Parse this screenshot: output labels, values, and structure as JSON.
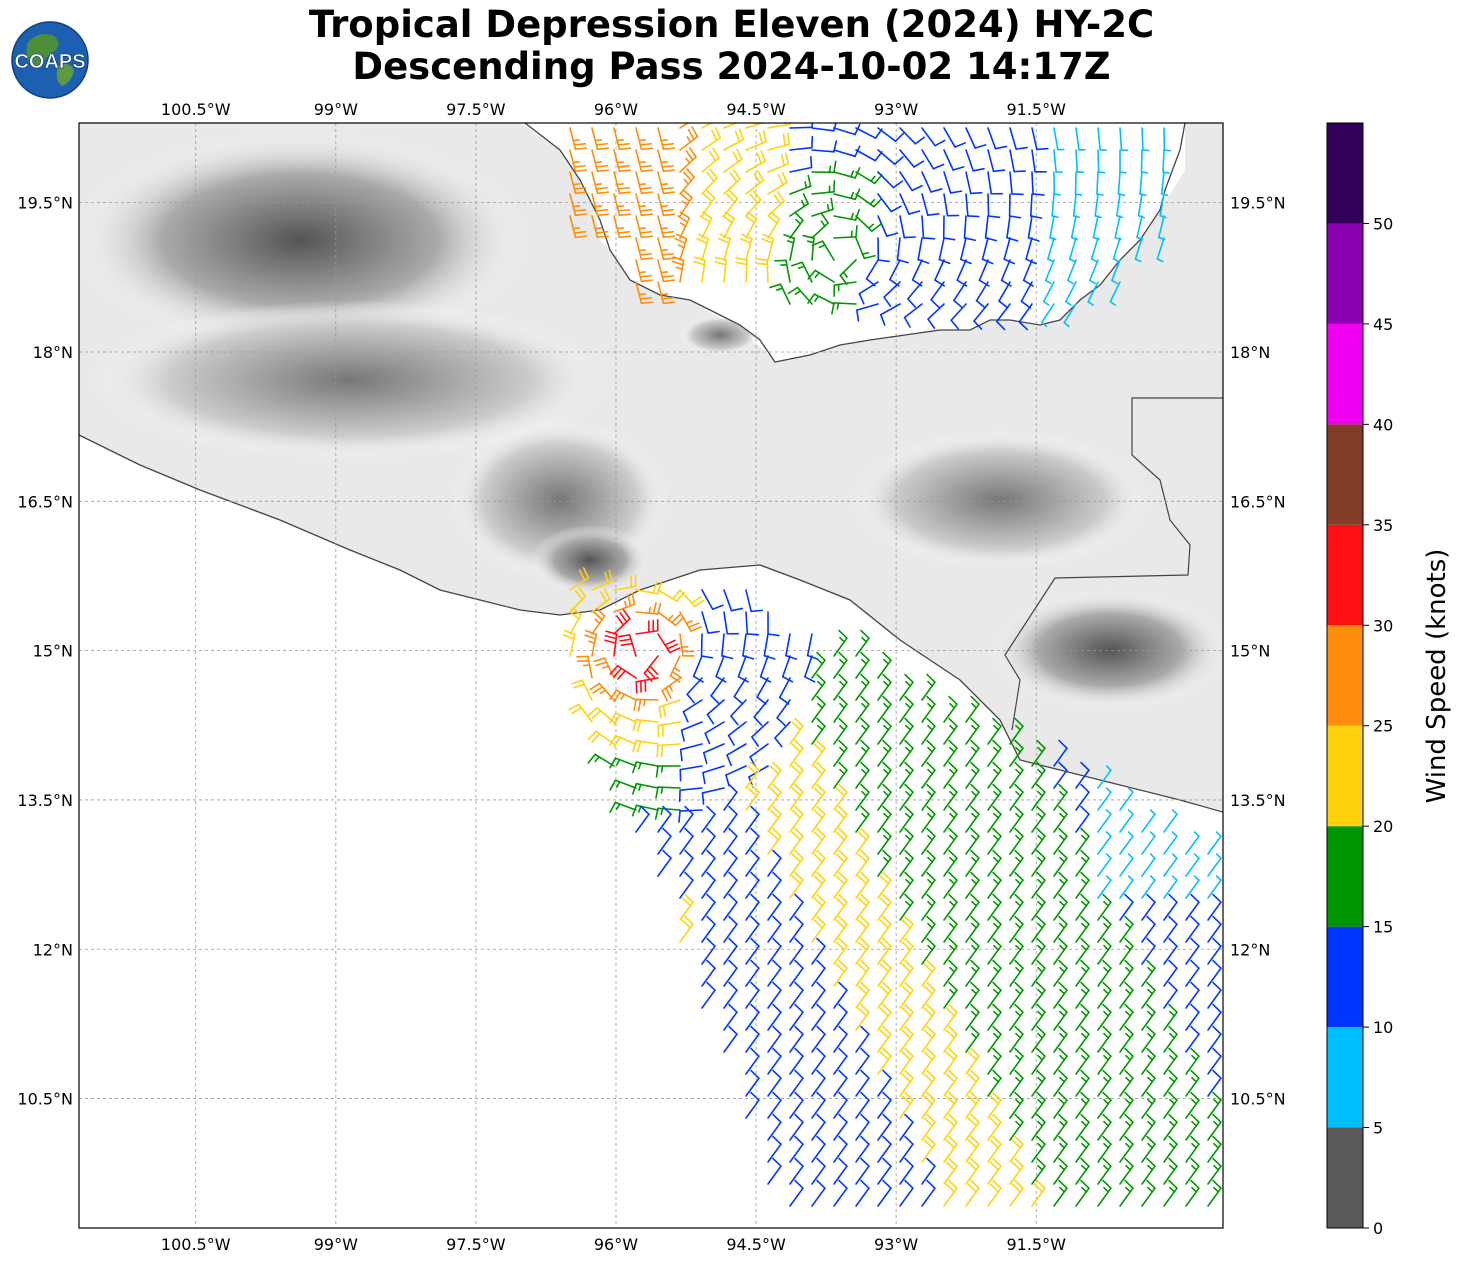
{
  "title": {
    "line1": "Tropical Depression Eleven (2024) HY-2C",
    "line2": "Descending Pass 2024-10-02 14:17Z"
  },
  "logo_text": "COAPS",
  "map": {
    "lon_range": [
      -101.75,
      -89.5
    ],
    "lat_range": [
      9.2,
      20.3
    ],
    "lon_ticks": [
      {
        "value": -100.5,
        "label": "100.5°W"
      },
      {
        "value": -99.0,
        "label": "99°W"
      },
      {
        "value": -97.5,
        "label": "97.5°W"
      },
      {
        "value": -96.0,
        "label": "96°W"
      },
      {
        "value": -94.5,
        "label": "94.5°W"
      },
      {
        "value": -93.0,
        "label": "93°W"
      },
      {
        "value": -91.5,
        "label": "91.5°W"
      }
    ],
    "lat_ticks": [
      {
        "value": 19.5,
        "label": "19.5°N"
      },
      {
        "value": 18.0,
        "label": "18°N"
      },
      {
        "value": 16.5,
        "label": "16.5°N"
      },
      {
        "value": 15.0,
        "label": "15°N"
      },
      {
        "value": 13.5,
        "label": "13.5°N"
      },
      {
        "value": 12.0,
        "label": "12°N"
      },
      {
        "value": 10.5,
        "label": "10.5°N"
      }
    ],
    "gridlines": true,
    "background": "grayscale terrain over land, white ocean"
  },
  "colorbar": {
    "label": "Wind Speed (knots)",
    "ticks": [
      "0",
      "5",
      "10",
      "15",
      "20",
      "25",
      "30",
      "35",
      "40",
      "45",
      "50"
    ],
    "bins": [
      {
        "min": 0,
        "max": 5,
        "color": "#595959"
      },
      {
        "min": 5,
        "max": 10,
        "color": "#00bfff"
      },
      {
        "min": 10,
        "max": 15,
        "color": "#0036ff"
      },
      {
        "min": 15,
        "max": 20,
        "color": "#009600"
      },
      {
        "min": 20,
        "max": 25,
        "color": "#ffd20f"
      },
      {
        "min": 25,
        "max": 30,
        "color": "#ff8c0a"
      },
      {
        "min": 30,
        "max": 35,
        "color": "#ff0f14"
      },
      {
        "min": 35,
        "max": 40,
        "color": "#823c28"
      },
      {
        "min": 40,
        "max": 45,
        "color": "#f000f0"
      },
      {
        "min": 45,
        "max": 50,
        "color": "#8c00b4"
      },
      {
        "min": 50,
        "max": 55,
        "color": "#32005a"
      }
    ]
  },
  "wind_field": {
    "north_pass_circulation_center": {
      "lon": -93.6,
      "lat": 19.0
    },
    "south_circulation_center": {
      "lon": -95.7,
      "lat": 15.0
    }
  }
}
